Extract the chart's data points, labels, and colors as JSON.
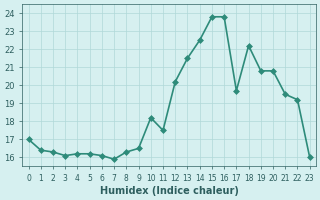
{
  "x": [
    0,
    1,
    2,
    3,
    4,
    5,
    6,
    7,
    8,
    9,
    10,
    11,
    12,
    13,
    14,
    15,
    16,
    17,
    18,
    19,
    20,
    21,
    22,
    23
  ],
  "y": [
    17.0,
    16.4,
    16.3,
    16.1,
    16.2,
    16.2,
    16.1,
    15.9,
    16.3,
    16.5,
    18.2,
    17.5,
    20.2,
    21.5,
    22.5,
    23.8,
    23.8,
    19.7,
    22.2,
    20.8,
    20.8,
    19.5,
    19.2,
    16.0
  ],
  "xlabel": "Humidex (Indice chaleur)",
  "ylabel": "",
  "xlim": [
    -0.5,
    23.5
  ],
  "ylim": [
    15.5,
    24.5
  ],
  "yticks": [
    16,
    17,
    18,
    19,
    20,
    21,
    22,
    23,
    24
  ],
  "xticks": [
    0,
    1,
    2,
    3,
    4,
    5,
    6,
    7,
    8,
    9,
    10,
    11,
    12,
    13,
    14,
    15,
    16,
    17,
    18,
    19,
    20,
    21,
    22,
    23
  ],
  "line_color": "#2e8b7a",
  "marker_color": "#2e8b7a",
  "bg_color": "#d6f0f0",
  "grid_color": "#b0d8d8",
  "tick_label_color": "#2e5f5f",
  "xlabel_color": "#2e5f5f",
  "marker": "D",
  "marker_size": 3,
  "line_width": 1.2
}
